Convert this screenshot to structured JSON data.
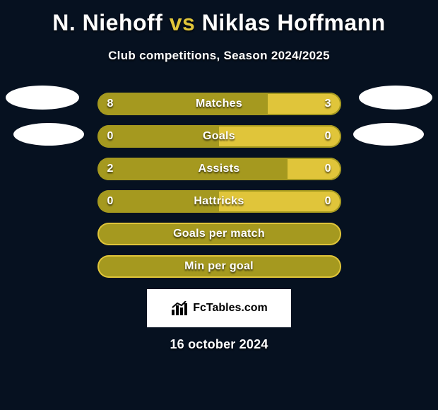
{
  "title": "N. Niehoff vs Niklas Hoffmann",
  "subtitle": "Club competitions, Season 2024/2025",
  "date": "16 october 2024",
  "badge": {
    "text": "FcTables.com"
  },
  "colors": {
    "background": "#061120",
    "left_fill": "#a5991f",
    "right_fill": "#e0c53a",
    "border_values": "#a5991f",
    "border_empty": "#e0c53a",
    "title_highlight": "#e0c53a",
    "text": "#ffffff"
  },
  "avatars": {
    "left": [
      "player1-primary",
      "player1-secondary"
    ],
    "right": [
      "player2-primary",
      "player2-secondary"
    ]
  },
  "stats": [
    {
      "label": "Matches",
      "left_val": "8",
      "right_val": "3",
      "left_pct": 70,
      "right_pct": 30,
      "show_values": true,
      "border": "values"
    },
    {
      "label": "Goals",
      "left_val": "0",
      "right_val": "0",
      "left_pct": 50,
      "right_pct": 50,
      "show_values": true,
      "border": "values"
    },
    {
      "label": "Assists",
      "left_val": "2",
      "right_val": "0",
      "left_pct": 78,
      "right_pct": 22,
      "show_values": true,
      "border": "values"
    },
    {
      "label": "Hattricks",
      "left_val": "0",
      "right_val": "0",
      "left_pct": 50,
      "right_pct": 50,
      "show_values": true,
      "border": "values"
    },
    {
      "label": "Goals per match",
      "left_val": "",
      "right_val": "",
      "left_pct": 100,
      "right_pct": 0,
      "show_values": false,
      "border": "empty",
      "single": true
    },
    {
      "label": "Min per goal",
      "left_val": "",
      "right_val": "",
      "left_pct": 100,
      "right_pct": 0,
      "show_values": false,
      "border": "empty",
      "single": true
    }
  ]
}
